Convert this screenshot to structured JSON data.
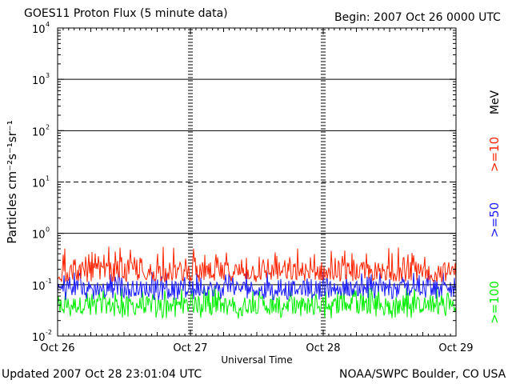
{
  "header": {
    "title": "GOES11 Proton Flux (5 minute data)",
    "begin": "Begin: 2007 Oct 26 0000 UTC"
  },
  "footer": {
    "updated": "Updated 2007 Oct 28 23:01:04 UTC",
    "credit": "NOAA/SWPC Boulder, CO USA"
  },
  "colors": {
    "ge10": "#ff2200",
    "ge50": "#1a1aff",
    "ge100": "#00ee00",
    "axis": "#000000",
    "background": "#ffffff"
  },
  "chart_data": {
    "type": "line",
    "title": "GOES11 Proton Flux (5 minute data)",
    "xlabel": "Universal Time",
    "ylabel": "Particles cm⁻²s⁻¹sr⁻¹",
    "yscale": "log",
    "ylim": [
      0.01,
      10000
    ],
    "y_ticks": [
      {
        "value": 0.01,
        "base": "10",
        "exp": "-2"
      },
      {
        "value": 0.1,
        "base": "10",
        "exp": "-1"
      },
      {
        "value": 1,
        "base": "10",
        "exp": "0"
      },
      {
        "value": 10,
        "base": "10",
        "exp": "1"
      },
      {
        "value": 100,
        "base": "10",
        "exp": "2"
      },
      {
        "value": 1000,
        "base": "10",
        "exp": "3"
      },
      {
        "value": 10000,
        "base": "10",
        "exp": "4"
      }
    ],
    "x_ticks": [
      "Oct 26",
      "Oct 27",
      "Oct 28",
      "Oct 29"
    ],
    "x_range_days": [
      0,
      3
    ],
    "threshold_lines": [
      {
        "value": 10,
        "style": "dashed"
      },
      {
        "value": 100,
        "style": "solid"
      },
      {
        "value": 1000,
        "style": "solid"
      },
      {
        "value": 1,
        "style": "solid"
      },
      {
        "value": 0.1,
        "style": "solid"
      }
    ],
    "unit_label": "MeV",
    "series": [
      {
        "name": ">=10",
        "color": "#ff2200",
        "baseline": 0.18,
        "range": [
          0.11,
          0.55
        ]
      },
      {
        "name": ">=50",
        "color": "#1a1aff",
        "baseline": 0.085,
        "range": [
          0.05,
          0.18
        ]
      },
      {
        "name": ">=100",
        "color": "#00ee00",
        "baseline": 0.04,
        "range": [
          0.022,
          0.09
        ]
      }
    ]
  }
}
